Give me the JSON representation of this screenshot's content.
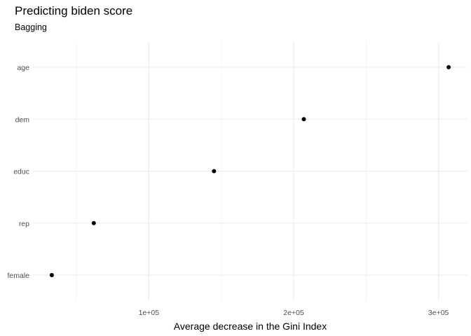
{
  "chart_data": {
    "type": "scatter",
    "title": "Predicting biden score",
    "subtitle": "Bagging",
    "xlabel": "Average decrease in the Gini Index",
    "ylabel": "",
    "categories": [
      "female",
      "rep",
      "educ",
      "dem",
      "age"
    ],
    "values": [
      33000,
      62000,
      145000,
      207000,
      307000
    ],
    "xlim": [
      20000,
      320000
    ],
    "x_ticks": [
      {
        "value": 100000,
        "label": "1e+05"
      },
      {
        "value": 200000,
        "label": "2e+05"
      },
      {
        "value": 300000,
        "label": "3e+05"
      }
    ],
    "x_minor_ticks": [
      50000,
      150000,
      250000
    ],
    "grid": true,
    "legend": "none"
  }
}
